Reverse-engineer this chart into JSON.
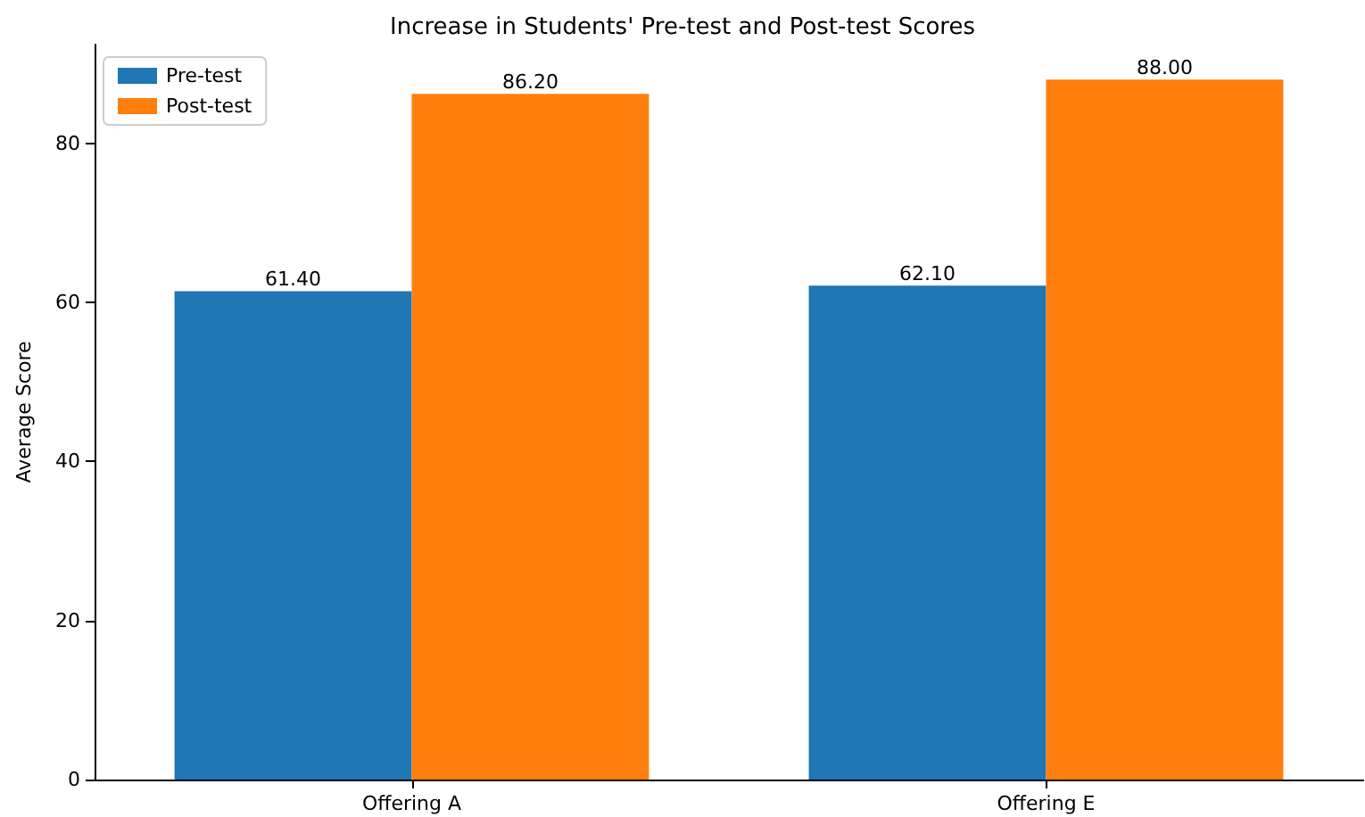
{
  "chart_data": {
    "type": "bar",
    "title": "Increase in Students' Pre-test and Post-test Scores",
    "ylabel": "Average Score",
    "categories": [
      "Offering A",
      "Offering E"
    ],
    "series": [
      {
        "name": "Pre-test",
        "color": "#1f77b4",
        "values": [
          61.4,
          62.1
        ],
        "value_labels": [
          "61.40",
          "62.10"
        ]
      },
      {
        "name": "Post-test",
        "color": "#ff7f0e",
        "values": [
          86.2,
          88.0
        ],
        "value_labels": [
          "86.20",
          "88.00"
        ]
      }
    ],
    "ylim": [
      0,
      92.4
    ],
    "yticks": [
      0,
      20,
      40,
      60,
      80
    ],
    "grid": false,
    "legend": "top left"
  }
}
